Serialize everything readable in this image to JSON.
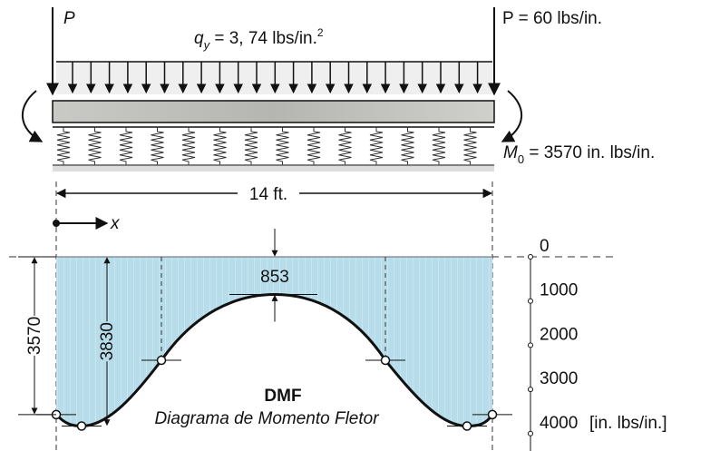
{
  "loads": {
    "p_left": "P",
    "p_right": "P = 60 lbs/in.",
    "q_symbol": "q",
    "q_sub": "y",
    "q_value": " = 3, 74  lbs/in.",
    "q_sup": "2",
    "m_symbol": "M",
    "m_sub": "0",
    "m_value": " = 3570 in. lbs/in."
  },
  "span": "14 ft.",
  "axis": "x",
  "diagram": {
    "title": "DMF",
    "subtitle": "Diagrama de Momento Fletor",
    "end_moment": 3570,
    "max_moment": 3830,
    "mid_moment": 853
  },
  "scale": {
    "ticks": [
      0,
      1000,
      2000,
      3000,
      4000
    ],
    "unit": "[in. lbs/in.]"
  }
}
